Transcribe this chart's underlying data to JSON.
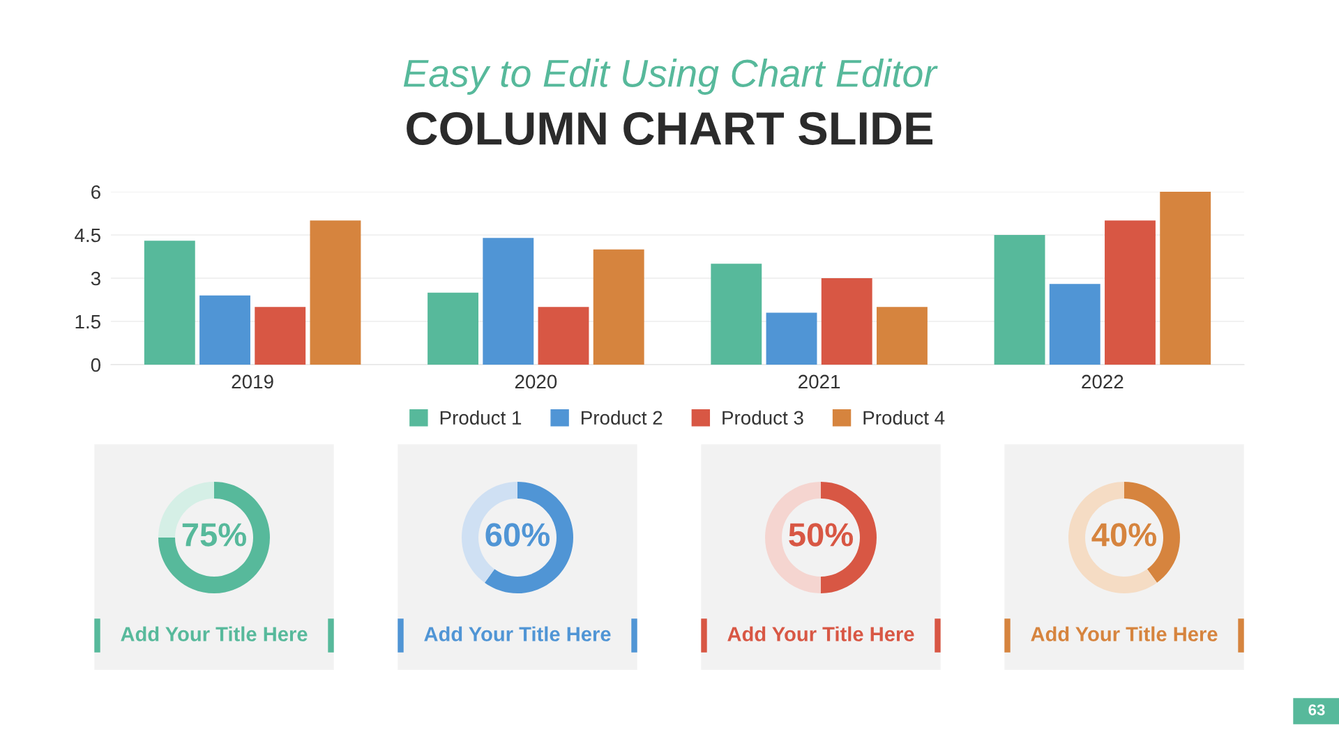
{
  "chart_data": [
    {
      "type": "bar",
      "subtitle": "Easy to Edit Using Chart Editor",
      "title": "COLUMN CHART SLIDE",
      "categories": [
        "2019",
        "2020",
        "2021",
        "2022"
      ],
      "series": [
        {
          "name": "Product 1",
          "color": "#57b99b",
          "values": [
            4.3,
            2.5,
            3.5,
            4.5
          ]
        },
        {
          "name": "Product 2",
          "color": "#5095d5",
          "values": [
            2.4,
            4.4,
            1.8,
            2.8
          ]
        },
        {
          "name": "Product 3",
          "color": "#d85744",
          "values": [
            2.0,
            2.0,
            3.0,
            5.0
          ]
        },
        {
          "name": "Product 4",
          "color": "#d6843e",
          "values": [
            5.0,
            4.0,
            2.0,
            6.0
          ]
        }
      ],
      "ylim": [
        0,
        6
      ],
      "yticks": [
        0,
        1.5,
        3,
        4.5,
        6
      ],
      "grid": "y",
      "legend": "bottom",
      "annotations": [
        "63"
      ]
    },
    {
      "type": "donut",
      "title": "Add Your Title Here",
      "categories": [
        null,
        null
      ],
      "values": [
        75,
        25
      ],
      "colors": [
        "#57b99b",
        "#d5efe6"
      ],
      "annotations": [
        "75%"
      ]
    },
    {
      "type": "donut",
      "title": "Add Your Title Here",
      "categories": [
        null,
        null
      ],
      "values": [
        60,
        40
      ],
      "colors": [
        "#5095d5",
        "#cfe0f3"
      ],
      "annotations": [
        "60%"
      ]
    },
    {
      "type": "donut",
      "title": "Add Your Title Here",
      "categories": [
        null,
        null
      ],
      "values": [
        50,
        50
      ],
      "colors": [
        "#d85744",
        "#f5d5d0"
      ],
      "annotations": [
        "50%"
      ]
    },
    {
      "type": "donut",
      "title": "Add Your Title Here",
      "categories": [
        null,
        null
      ],
      "values": [
        40,
        60
      ],
      "colors": [
        "#d6843e",
        "#f5dcc4"
      ],
      "annotations": [
        "40%"
      ]
    }
  ]
}
